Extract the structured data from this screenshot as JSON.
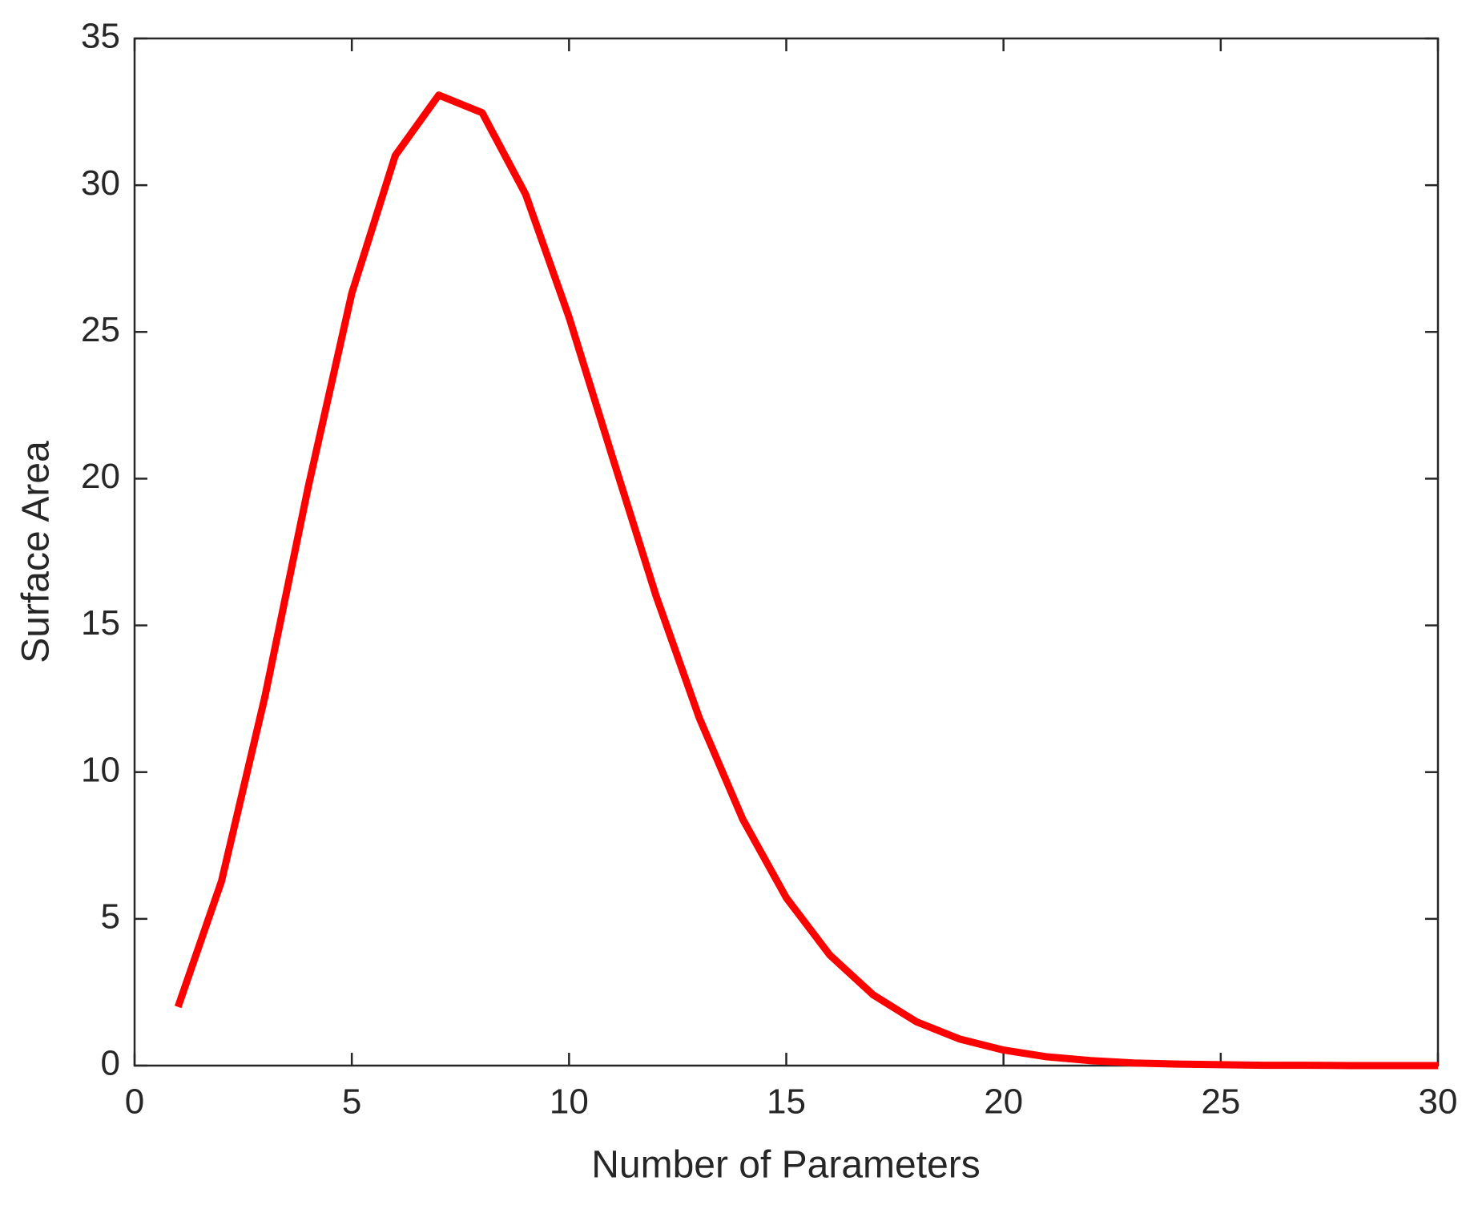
{
  "chart_data": {
    "type": "line",
    "x_label": "Number of Parameters",
    "y_label": "Surface Area",
    "x": [
      1,
      2,
      3,
      4,
      5,
      6,
      7,
      8,
      9,
      10,
      11,
      12,
      13,
      14,
      15,
      16,
      17,
      18,
      19,
      20,
      21,
      22,
      23,
      24,
      25,
      26,
      27,
      28,
      29,
      30
    ],
    "series": [
      {
        "name": "Surface Area",
        "color": "#ff0000",
        "values": [
          2,
          6.28,
          12.57,
          19.74,
          26.32,
          31.01,
          33.07,
          32.47,
          29.69,
          25.5,
          20.73,
          16.02,
          11.84,
          8.39,
          5.72,
          3.77,
          2.41,
          1.49,
          0.9,
          0.53,
          0.3,
          0.17,
          0.09,
          0.05,
          0.03,
          0.01,
          0.01,
          0,
          0,
          0
        ]
      }
    ],
    "xlim": [
      0,
      30
    ],
    "ylim": [
      0,
      35
    ],
    "xticks": [
      0,
      5,
      10,
      15,
      20,
      25,
      30
    ],
    "yticks": [
      0,
      5,
      10,
      15,
      20,
      25,
      30,
      35
    ],
    "grid": false
  }
}
